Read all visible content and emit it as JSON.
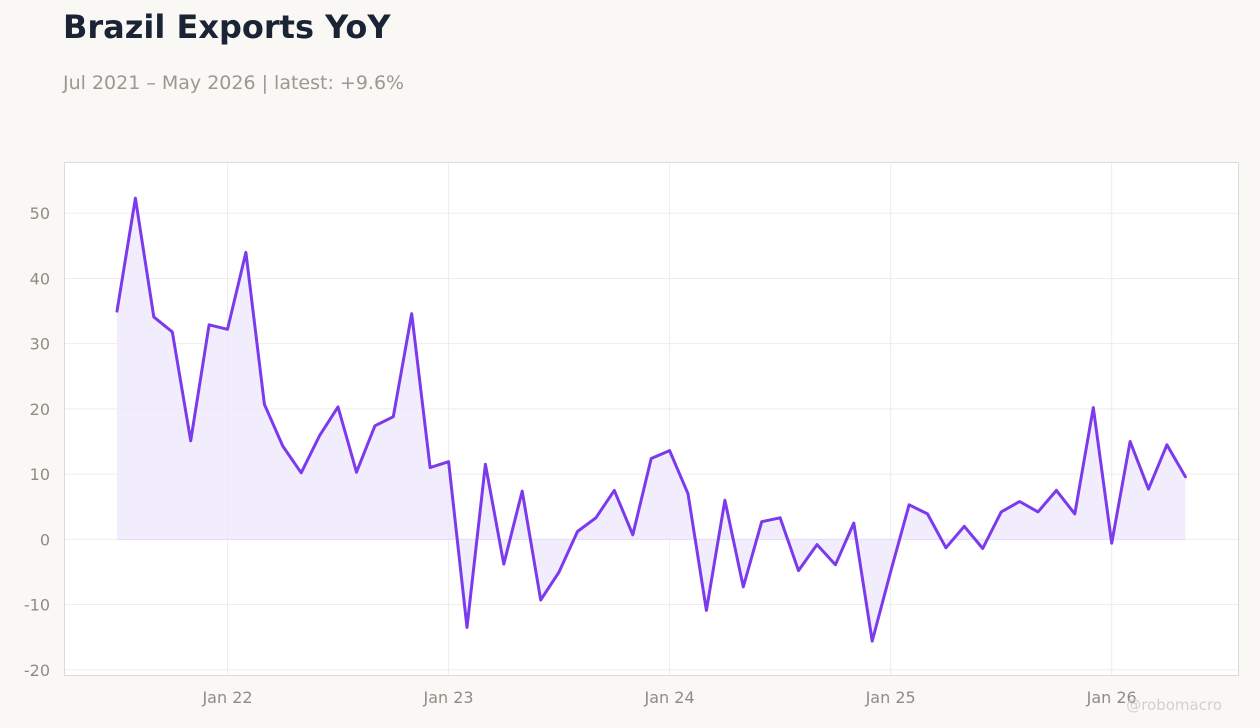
{
  "header": {
    "title": "Brazil Exports YoY",
    "subtitle": "Jul 2021 – May 2026 | latest: +9.6%"
  },
  "watermark": "@robomacro",
  "colors": {
    "background": "#f9f8f5",
    "plot_background": "#ffffff",
    "line": "#7c3aed",
    "fill": "#efe8fd",
    "grid": "#eeede9",
    "title": "#1b2434",
    "muted_text": "#9a9890"
  },
  "chart_data": {
    "type": "area",
    "title": "Brazil Exports YoY",
    "subtitle": "Jul 2021 – May 2026 | latest: +9.6%",
    "xlabel": "",
    "ylabel": "",
    "x_start": "2021-07",
    "x_end": "2026-05",
    "x_ticks": [
      "2022-01",
      "2023-01",
      "2024-01",
      "2025-01",
      "2026-01"
    ],
    "x_tick_labels": [
      "Jan 22",
      "Jan 23",
      "Jan 24",
      "Jan 25",
      "Jan 26"
    ],
    "y_ticks": [
      -20,
      -10,
      0,
      10,
      20,
      30,
      40,
      50
    ],
    "ylim": [
      -20.8,
      57.7
    ],
    "grid": true,
    "legend": "none",
    "series": [
      {
        "x": [
          "2021-07",
          "2021-08",
          "2021-09",
          "2021-10",
          "2021-11",
          "2021-12",
          "2022-01",
          "2022-02",
          "2022-03",
          "2022-04",
          "2022-05",
          "2022-06",
          "2022-07",
          "2022-08",
          "2022-09",
          "2022-10",
          "2022-11",
          "2022-12",
          "2023-01",
          "2023-02",
          "2023-03",
          "2023-04",
          "2023-05",
          "2023-06",
          "2023-07",
          "2023-08",
          "2023-09",
          "2023-10",
          "2023-11",
          "2023-12",
          "2024-01",
          "2024-02",
          "2024-03",
          "2024-04",
          "2024-05",
          "2024-06",
          "2024-07",
          "2024-08",
          "2024-09",
          "2024-10",
          "2024-11",
          "2024-12",
          "2025-01",
          "2025-02",
          "2025-03",
          "2025-04",
          "2025-05",
          "2025-06",
          "2025-07",
          "2025-08",
          "2025-09",
          "2025-10",
          "2025-11",
          "2025-12",
          "2026-01",
          "2026-02",
          "2026-03",
          "2026-04",
          "2026-05"
        ],
        "values": [
          35.0,
          52.3,
          34.1,
          31.8,
          15.1,
          32.9,
          32.2,
          44.0,
          20.7,
          14.3,
          10.2,
          15.9,
          20.3,
          10.3,
          17.4,
          18.8,
          34.6,
          11.0,
          11.9,
          -13.5,
          11.5,
          -3.8,
          7.4,
          -9.3,
          -5.0,
          1.2,
          3.3,
          7.5,
          0.7,
          12.4,
          13.6,
          7.0,
          -10.9,
          6.0,
          -7.3,
          2.7,
          3.3,
          -4.8,
          -0.8,
          -3.9,
          2.5,
          -15.6,
          -5.0,
          5.3,
          3.9,
          -1.3,
          2.0,
          -1.4,
          4.2,
          5.8,
          4.2,
          7.5,
          3.9,
          20.2,
          -0.6,
          15.0,
          7.7,
          14.5,
          9.6
        ]
      }
    ]
  }
}
